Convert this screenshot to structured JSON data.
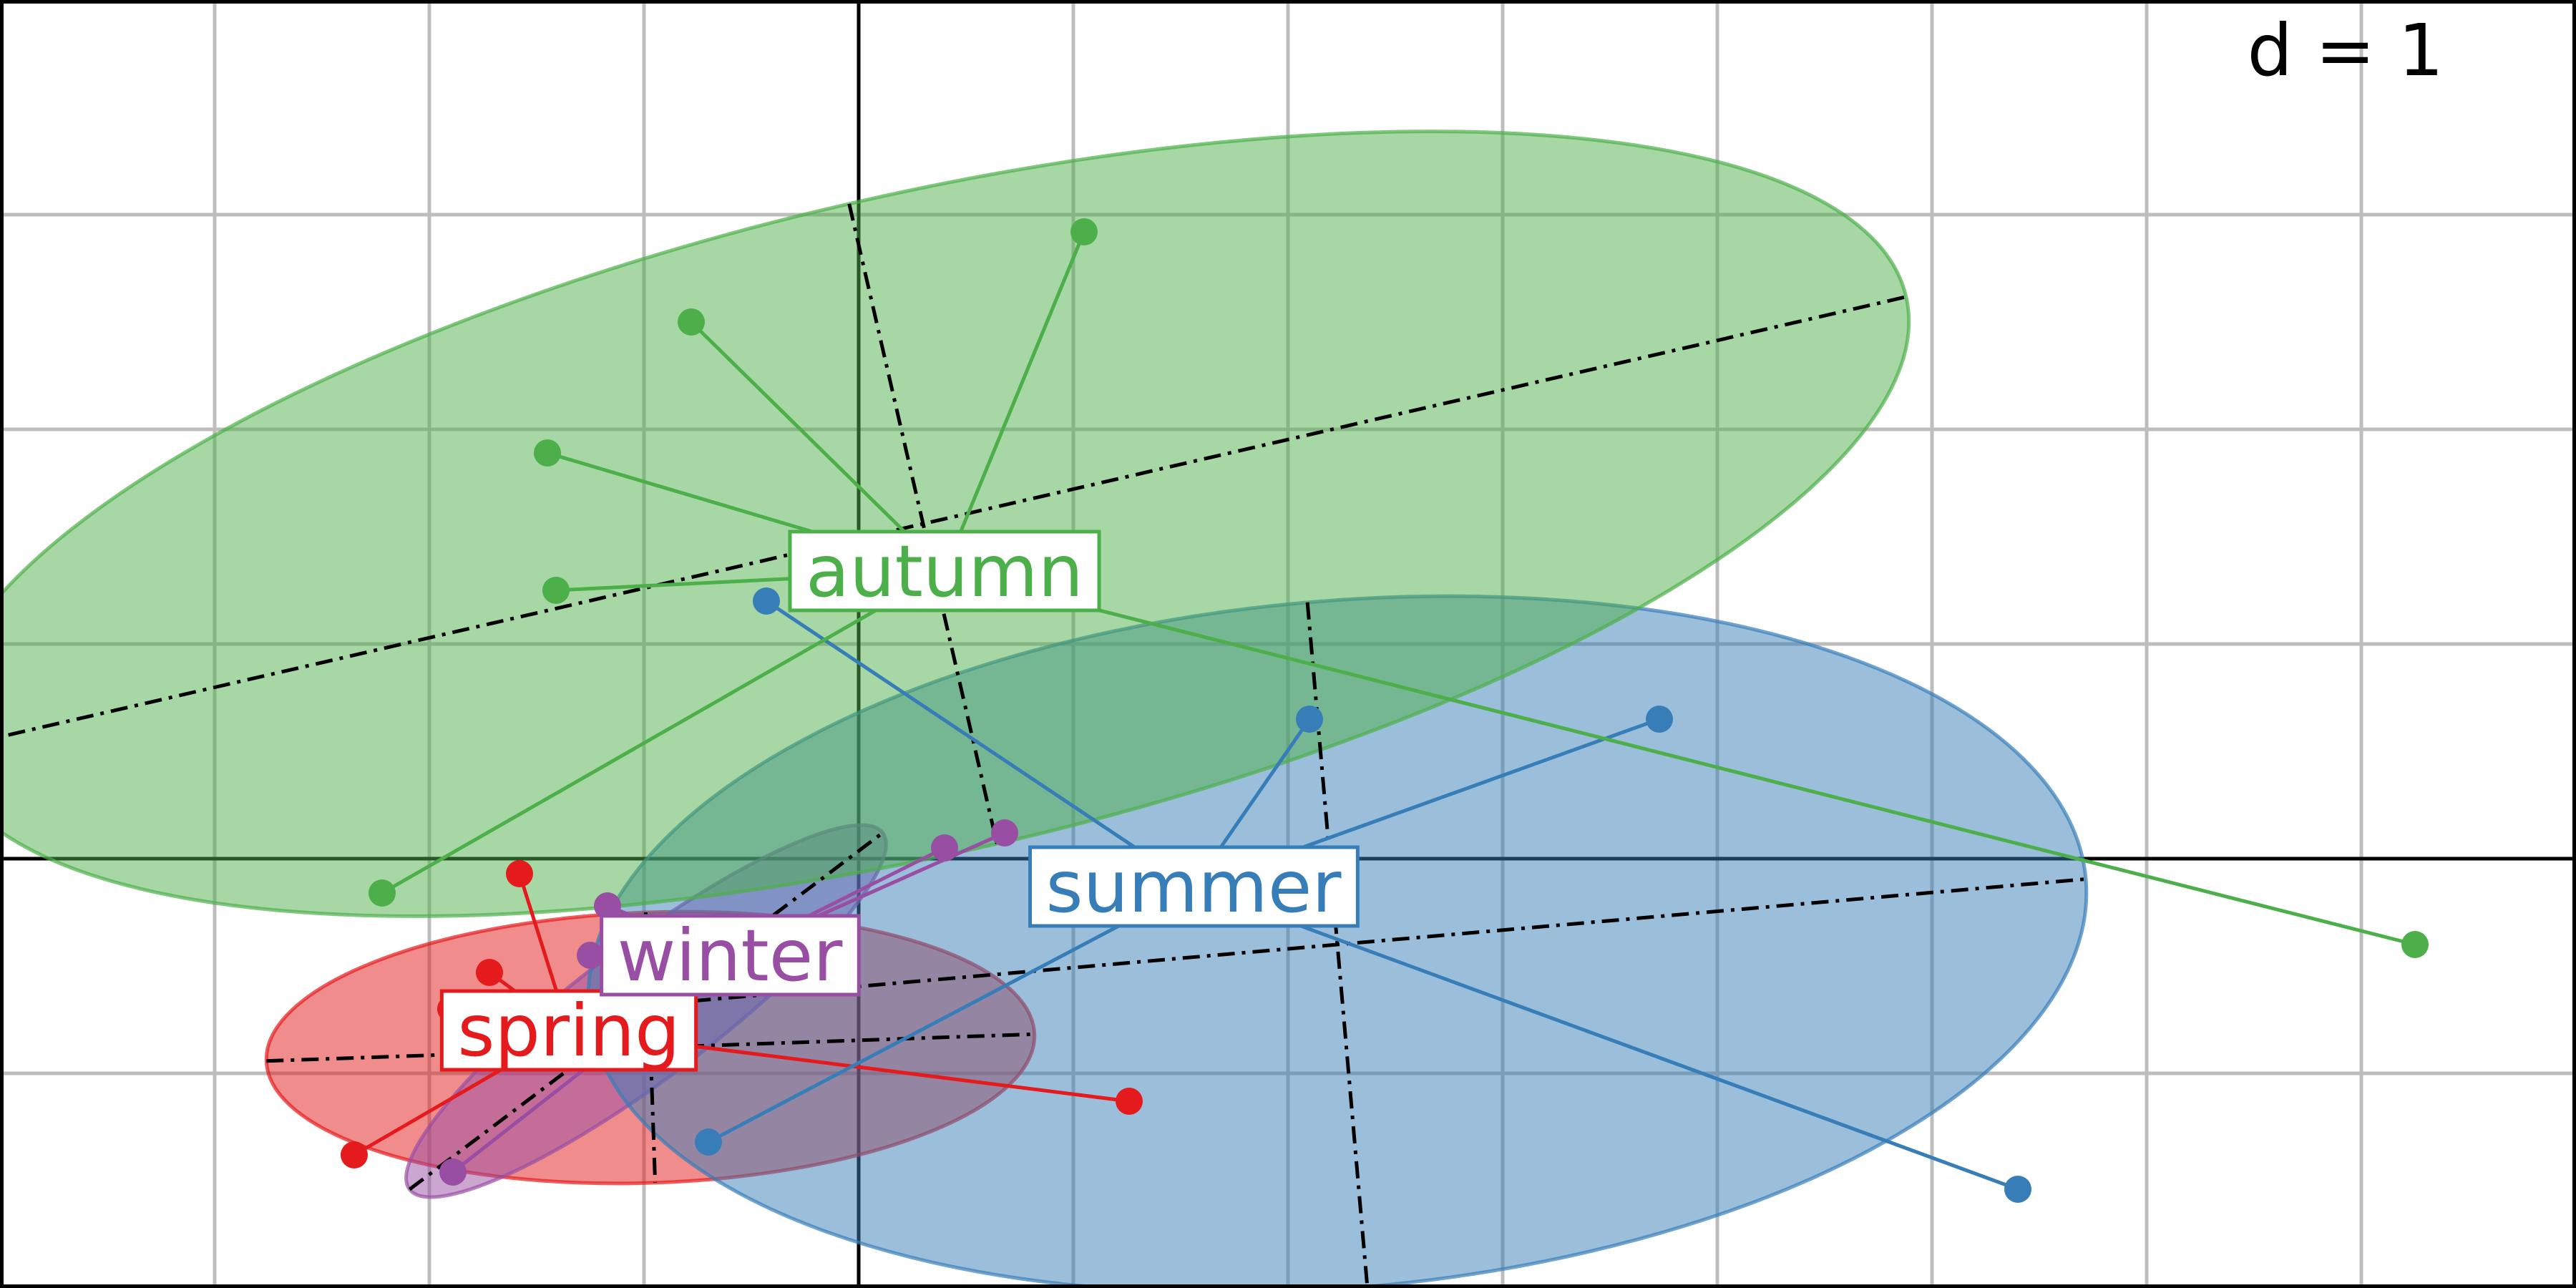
{
  "chart_data": {
    "type": "scatter",
    "grid_legend": "d = 1",
    "grid": true,
    "xlim": [
      -4,
      8
    ],
    "ylim": [
      -2,
      4
    ],
    "groups": [
      {
        "name": "spring",
        "color": "#e41a1c",
        "centroid": [
          -1.35,
          -0.8
        ],
        "ellipse": {
          "center": [
            -0.97,
            -0.88
          ],
          "rx": 1.79,
          "ry": 0.63,
          "angle_deg": -2
        },
        "points": [
          [
            -1.58,
            -0.07
          ],
          [
            -1.72,
            -0.53
          ],
          [
            -1.9,
            -0.7
          ],
          [
            -2.35,
            -1.38
          ],
          [
            1.26,
            -1.13
          ]
        ]
      },
      {
        "name": "winter",
        "color": "#984ea3",
        "centroid": [
          -0.6,
          -0.45
        ],
        "ellipse": {
          "center": [
            -0.99,
            -0.71
          ],
          "rx": 1.38,
          "ry": 0.31,
          "angle_deg": -37
        },
        "points": [
          [
            0.68,
            0.12
          ],
          [
            0.4,
            0.05
          ],
          [
            -1.17,
            -0.22
          ],
          [
            -1.25,
            -0.45
          ],
          [
            -1.89,
            -1.46
          ]
        ]
      },
      {
        "name": "summer",
        "color": "#377eb8",
        "centroid": [
          1.56,
          -0.13
        ],
        "ellipse": {
          "center": [
            2.23,
            -0.4
          ],
          "rx": 3.5,
          "ry": 1.6,
          "angle_deg": -5
        },
        "points": [
          [
            -0.43,
            1.2
          ],
          [
            2.1,
            0.65
          ],
          [
            3.73,
            0.65
          ],
          [
            5.4,
            -1.54
          ],
          [
            -0.7,
            -1.32
          ]
        ]
      },
      {
        "name": "autumn",
        "color": "#4daf4a",
        "centroid": [
          0.4,
          1.34
        ],
        "ellipse": {
          "center": [
            0.3,
            1.56
          ],
          "rx": 4.7,
          "ry": 1.53,
          "angle_deg": -13
        },
        "points": [
          [
            1.05,
            2.92
          ],
          [
            -0.78,
            2.5
          ],
          [
            -1.45,
            1.89
          ],
          [
            -1.41,
            1.25
          ],
          [
            -2.22,
            -0.16
          ],
          [
            7.25,
            -0.4
          ]
        ]
      }
    ]
  }
}
